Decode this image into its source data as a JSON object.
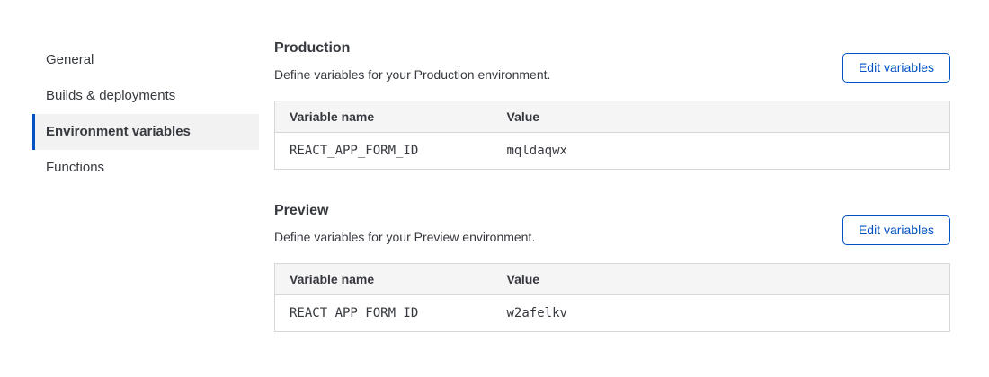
{
  "sidebar": {
    "items": [
      {
        "label": "General",
        "active": false
      },
      {
        "label": "Builds & deployments",
        "active": false
      },
      {
        "label": "Environment variables",
        "active": true
      },
      {
        "label": "Functions",
        "active": false
      }
    ]
  },
  "sections": [
    {
      "title": "Production",
      "description": "Define variables for your Production environment.",
      "button_label": "Edit variables",
      "table": {
        "headers": [
          "Variable name",
          "Value"
        ],
        "rows": [
          [
            "REACT_APP_FORM_ID",
            "mqldaqwx"
          ]
        ]
      }
    },
    {
      "title": "Preview",
      "description": "Define variables for your Preview environment.",
      "button_label": "Edit variables",
      "table": {
        "headers": [
          "Variable name",
          "Value"
        ],
        "rows": [
          [
            "REACT_APP_FORM_ID",
            "w2afelkv"
          ]
        ]
      }
    }
  ],
  "colors": {
    "accent_blue": "#0051c3",
    "active_item_background": "#f2f2f2",
    "table_header_background": "#f5f5f5",
    "table_border": "#d5d7d8",
    "text_primary": "#36393f"
  }
}
